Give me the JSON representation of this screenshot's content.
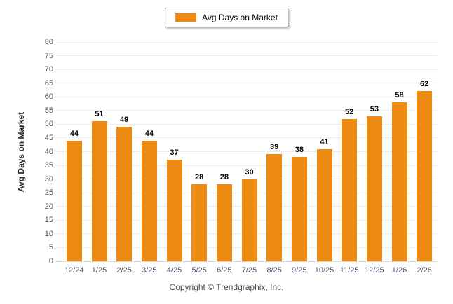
{
  "legend": {
    "label": "Avg Days on Market"
  },
  "y_axis_title": "Avg Days on Market",
  "copyright": "Copyright © Trendgraphix, Inc.",
  "chart_data": {
    "type": "bar",
    "title": "",
    "xlabel": "",
    "ylabel": "Avg Days on Market",
    "categories": [
      "12/24",
      "1/25",
      "2/25",
      "3/25",
      "4/25",
      "5/25",
      "6/25",
      "7/25",
      "8/25",
      "9/25",
      "10/25",
      "11/25",
      "12/25",
      "1/26",
      "2/26"
    ],
    "series": [
      {
        "name": "Avg Days on Market",
        "values": [
          44,
          51,
          49,
          44,
          37,
          28,
          28,
          30,
          39,
          38,
          41,
          52,
          53,
          58,
          62
        ]
      }
    ],
    "ylim": [
      0,
      80
    ],
    "ytick_step": 5,
    "grid": true,
    "legend_position": "top-center",
    "data_labels": true,
    "colors": {
      "bar": "#EE8B12",
      "grid": "#ECECEC",
      "baseline": "#D6D6D6",
      "y_tick_label": "#5C5248",
      "x_tick_label": "#49536B",
      "data_label": "#000000",
      "copyright": "#4A4A4A",
      "legend_border": "#58595B"
    }
  }
}
